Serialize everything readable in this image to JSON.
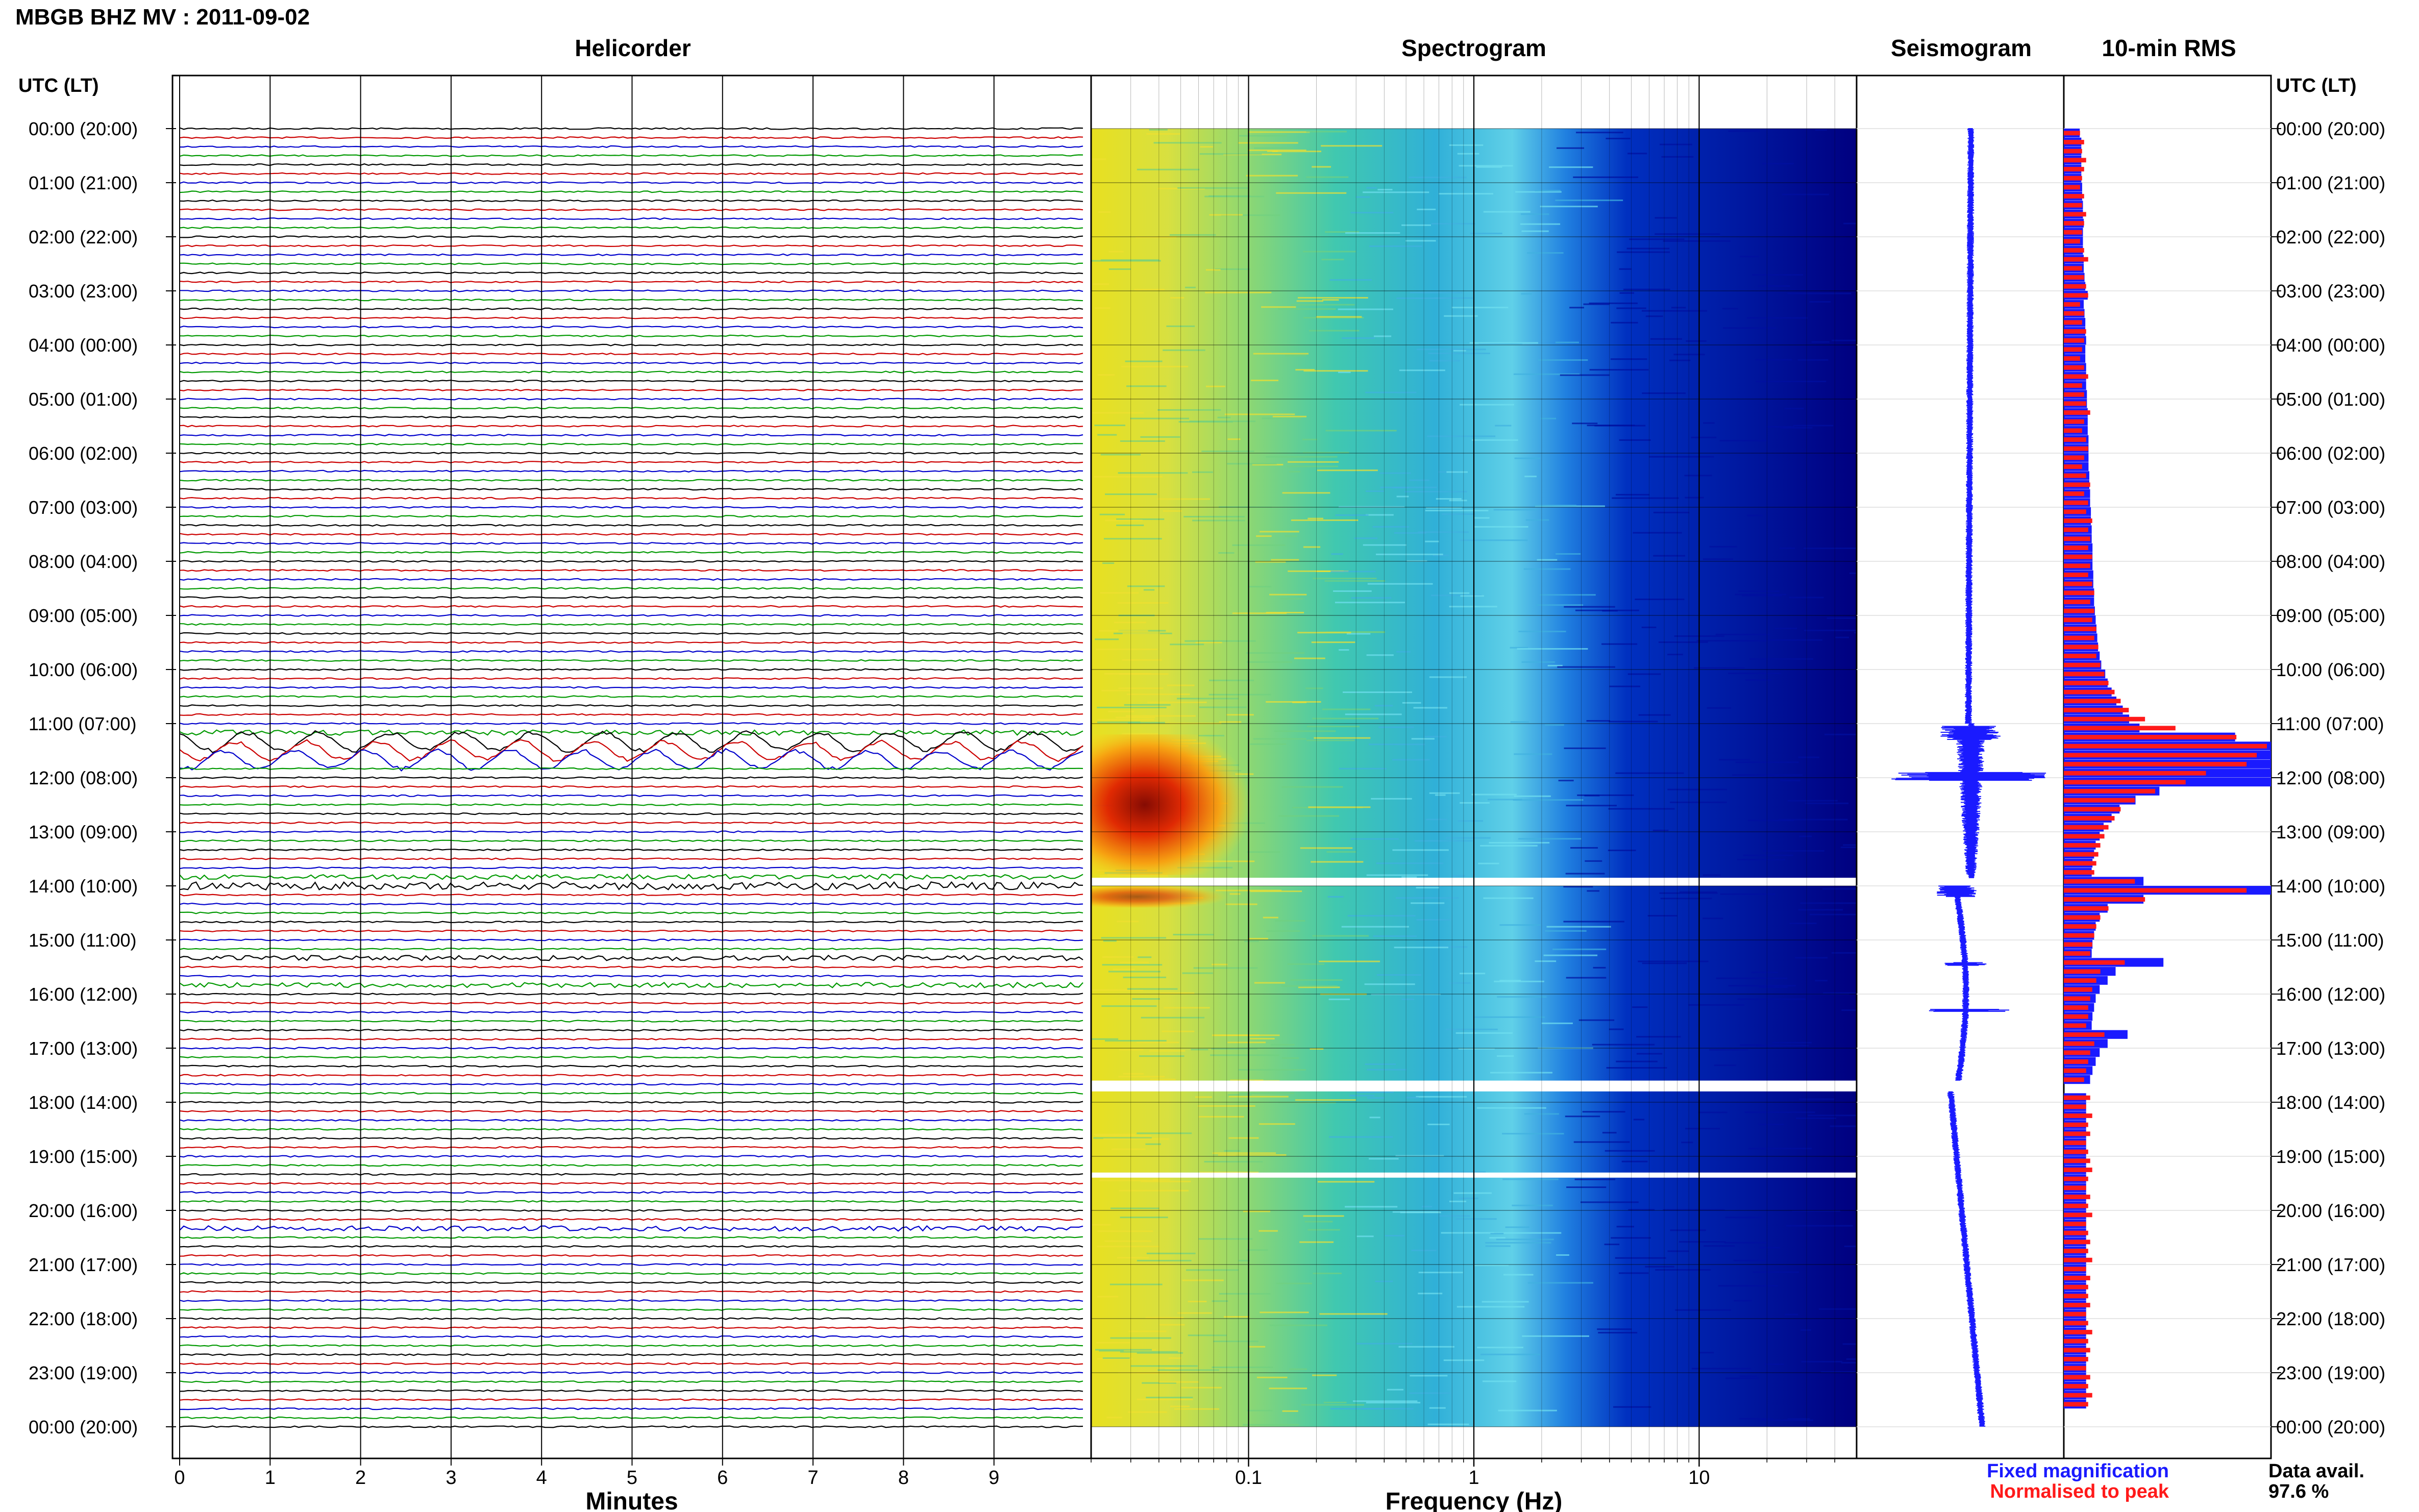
{
  "title": "MBGB BHZ MV : 2011-09-02",
  "panels": {
    "helicorder": "Helicorder",
    "spectrogram": "Spectrogram",
    "seismogram": "Seismogram",
    "rms": "10-min RMS"
  },
  "axis_headers": {
    "left": "UTC (LT)",
    "right": "UTC (LT)"
  },
  "hour_labels": [
    "00:00 (20:00)",
    "01:00 (21:00)",
    "02:00 (22:00)",
    "03:00 (23:00)",
    "04:00 (00:00)",
    "05:00 (01:00)",
    "06:00 (02:00)",
    "07:00 (03:00)",
    "08:00 (04:00)",
    "09:00 (05:00)",
    "10:00 (06:00)",
    "11:00 (07:00)",
    "12:00 (08:00)",
    "13:00 (09:00)",
    "14:00 (10:00)",
    "15:00 (11:00)",
    "16:00 (12:00)",
    "17:00 (13:00)",
    "18:00 (14:00)",
    "19:00 (15:00)",
    "20:00 (16:00)",
    "21:00 (17:00)",
    "22:00 (18:00)",
    "23:00 (19:00)",
    "00:00 (20:00)"
  ],
  "x_axes": {
    "minutes": {
      "label": "Minutes",
      "ticks": [
        "0",
        "1",
        "2",
        "3",
        "4",
        "5",
        "6",
        "7",
        "8",
        "9"
      ]
    },
    "frequency": {
      "label": "Frequency (Hz)",
      "ticks": [
        "0.1",
        "1",
        "10"
      ]
    }
  },
  "legend": {
    "fixed": "Fixed magnification",
    "normalised": "Normalised to peak",
    "fixed_color": "#1a1aff",
    "normalised_color": "#ff1a1a"
  },
  "availability": {
    "label": "Data avail.",
    "value": "97.6 %"
  },
  "colors": {
    "trace_cycle": [
      "#000000",
      "#cc0000",
      "#0000cc",
      "#009900"
    ],
    "rms_fixed": "#1a1aff",
    "rms_norm": "#ff1a1a"
  },
  "chart_data": [
    {
      "type": "line",
      "panel": "helicorder",
      "xlabel": "Minutes",
      "xlim": [
        0,
        10
      ],
      "rows_per_hour": 6,
      "hours": 24,
      "events_utc_hours": [
        11.1,
        11.4,
        13.9,
        15.3,
        15.8,
        20.3
      ]
    },
    {
      "type": "heatmap",
      "panel": "spectrogram",
      "xlabel": "Frequency (Hz)",
      "x_scale": "log",
      "xlim": [
        0.02,
        50
      ],
      "gaps_utc_hours": [
        [
          13.85,
          14.0
        ],
        [
          17.6,
          17.8
        ],
        [
          19.3,
          19.35
        ]
      ]
    },
    {
      "type": "line",
      "panel": "seismogram",
      "gaps_utc_hours": [
        [
          13.85,
          14.0
        ],
        [
          17.6,
          17.8
        ]
      ]
    },
    {
      "type": "bar",
      "panel": "10-min RMS",
      "series": [
        {
          "name": "Fixed magnification",
          "values": [
            0.2,
            0.22,
            0.22,
            0.22,
            0.22,
            0.22,
            0.23,
            0.23,
            0.24,
            0.24,
            0.25,
            0.24,
            0.24,
            0.24,
            0.25,
            0.25,
            0.26,
            0.27,
            0.3,
            0.25,
            0.26,
            0.27,
            0.27,
            0.28,
            0.27,
            0.27,
            0.28,
            0.28,
            0.28,
            0.29,
            0.29,
            0.3,
            0.3,
            0.3,
            0.31,
            0.31,
            0.31,
            0.31,
            0.32,
            0.32,
            0.33,
            0.33,
            0.34,
            0.34,
            0.35,
            0.35,
            0.36,
            0.36,
            0.36,
            0.37,
            0.37,
            0.38,
            0.38,
            0.39,
            0.4,
            0.41,
            0.42,
            0.43,
            0.45,
            0.47,
            0.52,
            0.55,
            0.6,
            0.66,
            0.74,
            0.82,
            0.95,
            2.15,
            2.6,
            2.6,
            2.6,
            2.6,
            2.6,
            1.2,
            0.9,
            0.7,
            0.6,
            0.5,
            0.45,
            0.4,
            0.38,
            0.36,
            0.35,
            1.0,
            2.6,
            1.0,
            0.55,
            0.45,
            0.4,
            0.38,
            0.36,
            0.35,
            1.25,
            0.65,
            0.55,
            0.45,
            0.4,
            0.38,
            0.36,
            0.35,
            0.8,
            0.55,
            0.45,
            0.4,
            0.36,
            0.33,
            0.28,
            0.28,
            0.28,
            0.28,
            0.28,
            0.28,
            0.28,
            0.28,
            0.28,
            0.28,
            0.28,
            0.28,
            0.28,
            0.28,
            0.28,
            0.28,
            0.28,
            0.28,
            0.28,
            0.28,
            0.28,
            0.28,
            0.28,
            0.28,
            0.28,
            0.28,
            0.28,
            0.28,
            0.28,
            0.28,
            0.28,
            0.28,
            0.28,
            0.28,
            0.28,
            0.28
          ]
        },
        {
          "name": "Normalised to peak",
          "values": [
            0.08,
            0.1,
            0.09,
            0.11,
            0.1,
            0.09,
            0.08,
            0.1,
            0.09,
            0.11,
            0.1,
            0.09,
            0.08,
            0.1,
            0.12,
            0.09,
            0.1,
            0.11,
            0.12,
            0.08,
            0.1,
            0.09,
            0.11,
            0.1,
            0.09,
            0.08,
            0.1,
            0.12,
            0.09,
            0.1,
            0.11,
            0.13,
            0.1,
            0.09,
            0.11,
            0.12,
            0.1,
            0.09,
            0.11,
            0.13,
            0.1,
            0.12,
            0.11,
            0.14,
            0.12,
            0.13,
            0.12,
            0.14,
            0.13,
            0.12,
            0.14,
            0.15,
            0.13,
            0.15,
            0.14,
            0.16,
            0.15,
            0.17,
            0.16,
            0.18,
            0.2,
            0.22,
            0.25,
            0.28,
            0.32,
            0.4,
            0.55,
            0.85,
            1.0,
            0.95,
            0.9,
            0.7,
            0.6,
            0.45,
            0.35,
            0.28,
            0.25,
            0.22,
            0.2,
            0.18,
            0.17,
            0.16,
            0.15,
            0.35,
            0.9,
            0.4,
            0.22,
            0.18,
            0.16,
            0.15,
            0.14,
            0.13,
            0.3,
            0.18,
            0.16,
            0.14,
            0.13,
            0.12,
            0.12,
            0.11,
            0.2,
            0.15,
            0.13,
            0.12,
            0.11,
            0.1,
            0.12,
            0.13,
            0.11,
            0.14,
            0.12,
            0.13,
            0.11,
            0.12,
            0.13,
            0.14,
            0.12,
            0.11,
            0.13,
            0.12,
            0.14,
            0.11,
            0.12,
            0.13,
            0.12,
            0.14,
            0.11,
            0.13,
            0.12,
            0.12,
            0.13,
            0.11,
            0.12,
            0.14,
            0.12,
            0.13,
            0.12,
            0.11,
            0.13,
            0.12,
            0.14,
            0.12
          ]
        }
      ],
      "gaps_utc_hours": [
        [
          13.85,
          14.0
        ],
        [
          17.6,
          17.8
        ]
      ]
    }
  ]
}
